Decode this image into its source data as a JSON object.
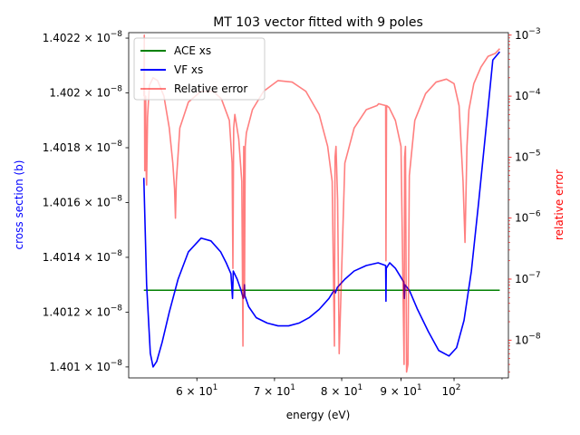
{
  "chart_data": {
    "type": "line",
    "title": "MT 103 vector fitted with 9 poles",
    "xlabel": "energy (eV)",
    "ylabel_left": "cross section (b)",
    "ylabel_right": "relative error",
    "x_scale": "log",
    "x_range": [
      52.4,
      111.4
    ],
    "x_ticks": [
      {
        "value": 60,
        "base": "6",
        "exp": "1"
      },
      {
        "value": 70,
        "base": "7",
        "exp": "1"
      },
      {
        "value": 80,
        "base": "8",
        "exp": "1"
      },
      {
        "value": 90,
        "base": "9",
        "exp": "1"
      },
      {
        "value": 100,
        "base": "10",
        "exp": "2"
      }
    ],
    "y_left_range": [
      1.40096e-08,
      1.40222e-08
    ],
    "y_left_ticks": [
      {
        "value": 1.401e-08,
        "mantissa": "1.401",
        "exp": "−8"
      },
      {
        "value": 1.4012e-08,
        "mantissa": "1.4012",
        "exp": "−8"
      },
      {
        "value": 1.4014e-08,
        "mantissa": "1.4014",
        "exp": "−8"
      },
      {
        "value": 1.4016e-08,
        "mantissa": "1.4016",
        "exp": "−8"
      },
      {
        "value": 1.4018e-08,
        "mantissa": "1.4018",
        "exp": "−8"
      },
      {
        "value": 1.402e-08,
        "mantissa": "1.402",
        "exp": "−8"
      },
      {
        "value": 1.4022e-08,
        "mantissa": "1.4022",
        "exp": "−8"
      }
    ],
    "y_right_scale": "log",
    "y_right_range": [
      2.4e-09,
      0.0011
    ],
    "y_right_ticks": [
      {
        "value": 1e-08,
        "base": "10",
        "exp": "−8"
      },
      {
        "value": 1e-07,
        "base": "10",
        "exp": "−7"
      },
      {
        "value": 1e-06,
        "base": "10",
        "exp": "−6"
      },
      {
        "value": 1e-05,
        "base": "10",
        "exp": "−5"
      },
      {
        "value": 0.0001,
        "base": "10",
        "exp": "−4"
      },
      {
        "value": 0.001,
        "base": "10",
        "exp": "−3"
      }
    ],
    "legend_position": "upper-left",
    "series": [
      {
        "name": "ACE xs",
        "color": "#008000",
        "axis": "left",
        "x": [
          54.0,
          58.0,
          62.0,
          66.0,
          70.0,
          75.0,
          80.0,
          85.0,
          90.0,
          95.0,
          100.0,
          105.0,
          109.5
        ],
        "y": [
          1.40128e-08,
          1.40128e-08,
          1.40128e-08,
          1.40128e-08,
          1.40128e-08,
          1.40128e-08,
          1.40128e-08,
          1.40128e-08,
          1.40128e-08,
          1.40128e-08,
          1.40128e-08,
          1.40128e-08,
          1.40128e-08
        ]
      },
      {
        "name": "VF xs",
        "color": "#0000ff",
        "axis": "left",
        "x": [
          54.0,
          54.3,
          54.7,
          55.0,
          55.4,
          56.0,
          56.8,
          57.8,
          59.0,
          60.5,
          61.7,
          62.9,
          63.6,
          64.2,
          64.4,
          64.45,
          64.5,
          65.0,
          65.5,
          65.8,
          65.9,
          65.95,
          66.0,
          66.5,
          67.5,
          69.0,
          70.5,
          72.0,
          73.5,
          75.0,
          76.5,
          78.0,
          78.8,
          79.0,
          79.3,
          80.5,
          82.0,
          84.0,
          86.0,
          87.3,
          87.35,
          87.4,
          88.0,
          89.0,
          90.5,
          90.6,
          90.7,
          91.5,
          93.0,
          95.0,
          97.0,
          99.0,
          100.5,
          102.0,
          103.5,
          105.0,
          106.5,
          108.0,
          109.5
        ],
        "y": [
          1.40169e-08,
          1.4013e-08,
          1.40105e-08,
          1.401e-08,
          1.40102e-08,
          1.40109e-08,
          1.4012e-08,
          1.40132e-08,
          1.40142e-08,
          1.40147e-08,
          1.40146e-08,
          1.40142e-08,
          1.40138e-08,
          1.40134e-08,
          1.40125e-08,
          1.4013e-08,
          1.40135e-08,
          1.40132e-08,
          1.40128e-08,
          1.40125e-08,
          1.40127e-08,
          1.4013e-08,
          1.40126e-08,
          1.40122e-08,
          1.40118e-08,
          1.40116e-08,
          1.40115e-08,
          1.40115e-08,
          1.40116e-08,
          1.40118e-08,
          1.40121e-08,
          1.40125e-08,
          1.40128e-08,
          1.40127e-08,
          1.40129e-08,
          1.40132e-08,
          1.40135e-08,
          1.40137e-08,
          1.40138e-08,
          1.40137e-08,
          1.40124e-08,
          1.40136e-08,
          1.40138e-08,
          1.40136e-08,
          1.40131e-08,
          1.40125e-08,
          1.4013e-08,
          1.40128e-08,
          1.40121e-08,
          1.40113e-08,
          1.40106e-08,
          1.40104e-08,
          1.40107e-08,
          1.40117e-08,
          1.40135e-08,
          1.4016e-08,
          1.40186e-08,
          1.40212e-08,
          1.40215e-08
        ]
      },
      {
        "name": "Relative error",
        "color": "#ff0000",
        "opacity": 0.5,
        "axis": "right",
        "x": [
          54.0,
          54.05,
          54.1,
          54.2,
          54.25,
          54.3,
          54.4,
          54.6,
          55.0,
          55.5,
          56.2,
          56.8,
          57.2,
          57.4,
          57.5,
          57.6,
          58.0,
          59.0,
          60.5,
          62.0,
          63.0,
          64.0,
          64.35,
          64.45,
          64.55,
          64.7,
          65.2,
          65.6,
          65.75,
          65.85,
          65.95,
          66.05,
          66.2,
          67.0,
          68.5,
          70.5,
          72.5,
          74.5,
          76.5,
          77.8,
          78.5,
          78.85,
          78.95,
          79.1,
          79.35,
          79.6,
          80.5,
          82.0,
          84.0,
          85.8,
          86.1,
          87.3,
          87.35,
          87.45,
          87.9,
          89.0,
          90.0,
          90.55,
          90.65,
          90.8,
          91.0,
          91.25,
          91.5,
          92.5,
          94.5,
          96.5,
          98.5,
          100.0,
          101.0,
          101.8,
          102.2,
          102.4,
          102.6,
          103.0,
          104.0,
          105.5,
          107.0,
          108.5,
          109.5
        ],
        "y": [
          0.0001,
          0.001,
          6e-06,
          0.0001,
          6e-06,
          3.5e-06,
          4.5e-05,
          0.00015,
          0.0002,
          0.00018,
          0.0001,
          3e-05,
          8e-06,
          3e-06,
          1e-06,
          4e-06,
          3e-05,
          8e-05,
          0.00012,
          0.00012,
          9e-05,
          4e-05,
          8e-06,
          1.5e-07,
          3e-05,
          5e-05,
          2e-05,
          4e-06,
          8e-09,
          1.5e-05,
          5e-08,
          1.5e-05,
          2.5e-05,
          6e-05,
          0.00012,
          0.00018,
          0.00017,
          0.00012,
          5e-05,
          1.5e-05,
          4e-06,
          8e-09,
          1e-05,
          1.5e-05,
          2e-06,
          6e-09,
          8e-06,
          3e-05,
          6e-05,
          7e-05,
          7.5e-05,
          7e-05,
          2e-07,
          7e-05,
          6.5e-05,
          4e-05,
          1.5e-05,
          4e-09,
          1e-05,
          1.5e-05,
          3e-09,
          4e-09,
          5e-06,
          4e-05,
          0.00011,
          0.00017,
          0.00019,
          0.00016,
          7e-05,
          4e-06,
          4e-07,
          2.5e-06,
          1.5e-05,
          6e-05,
          0.00016,
          0.0003,
          0.00045,
          0.0005,
          0.0006
        ]
      }
    ]
  }
}
